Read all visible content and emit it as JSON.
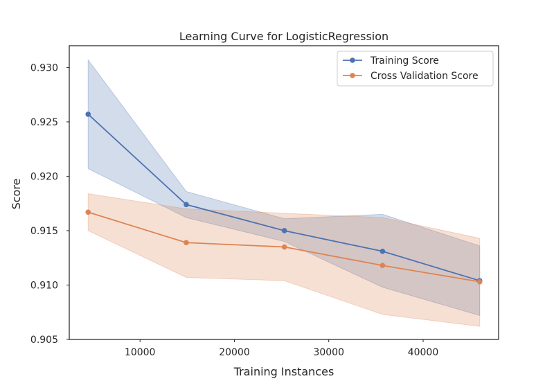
{
  "chart_data": {
    "type": "line",
    "title": "Learning Curve for LogisticRegression",
    "xlabel": "Training Instances",
    "ylabel": "Score",
    "xlim": [
      2500,
      48000
    ],
    "ylim": [
      0.905,
      0.932
    ],
    "x_ticks": [
      10000,
      20000,
      30000,
      40000
    ],
    "x_tick_labels": [
      "10000",
      "20000",
      "30000",
      "40000"
    ],
    "y_ticks": [
      0.905,
      0.91,
      0.915,
      0.92,
      0.925,
      0.93
    ],
    "y_tick_labels": [
      "0.905",
      "0.910",
      "0.915",
      "0.920",
      "0.925",
      "0.930"
    ],
    "grid": false,
    "legend_position": "top-right",
    "x": [
      4500,
      14900,
      25300,
      35700,
      46000
    ],
    "series": [
      {
        "name": "Training Score",
        "color": "#4c72b0",
        "values": [
          0.9257,
          0.9174,
          0.915,
          0.9131,
          0.9104
        ],
        "lower": [
          0.9207,
          0.9162,
          0.914,
          0.9098,
          0.9072
        ],
        "upper": [
          0.9307,
          0.9186,
          0.9161,
          0.9165,
          0.9136
        ]
      },
      {
        "name": "Cross Validation Score",
        "color": "#dd8452",
        "values": [
          0.9167,
          0.9139,
          0.9135,
          0.9118,
          0.9103
        ],
        "lower": [
          0.915,
          0.9107,
          0.9104,
          0.9073,
          0.9062
        ],
        "upper": [
          0.9184,
          0.917,
          0.9166,
          0.9162,
          0.9143
        ]
      }
    ]
  }
}
